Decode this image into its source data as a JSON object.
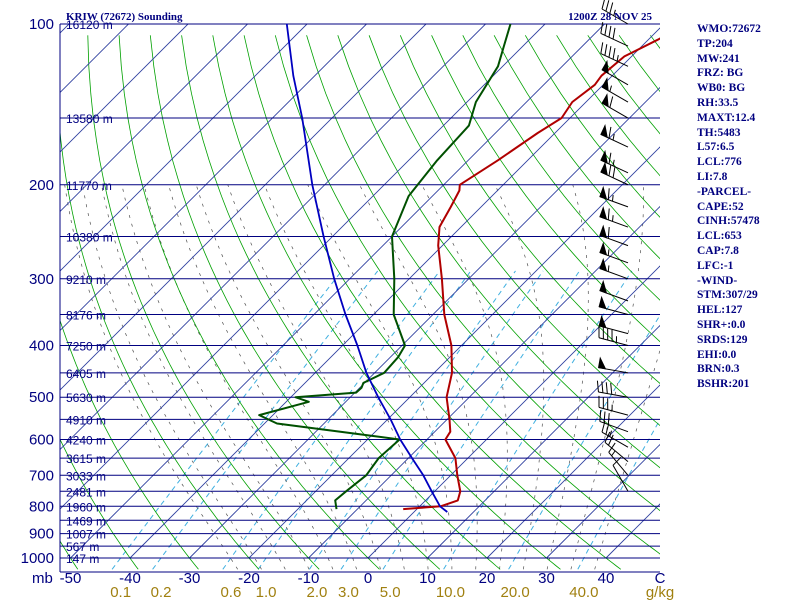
{
  "header": {
    "station": "KRIW (72672) Sounding",
    "time": "1200Z 28 NOV 25"
  },
  "indices": [
    "WMO:72672",
    "TP:204",
    "MW:241",
    "FRZ: BG",
    "WB0: BG",
    "RH:33.5",
    "MAXT:12.4",
    "TH:5483",
    "L57:6.5",
    "LCL:776",
    "LI:7.8",
    "-PARCEL-",
    "CAPE:52",
    "CINH:57478",
    "LCL:653",
    "CAP:7.8",
    "LFC:-1",
    "-WIND-",
    "STM:307/29",
    "HEL:127",
    "SHR+:0.0",
    "SRDS:129",
    "EHI:0.0",
    "BRN:0.3",
    "BSHR:201"
  ],
  "colors": {
    "isobar": "#000080",
    "isotherm": "#3040a0",
    "dry_adiabat": "#00a000",
    "mixing_ratio": "#40b0e0",
    "moist_adiabat": "#505050",
    "temperature": "#b00000",
    "dewpoint": "#005000",
    "parcel": "#0000c0",
    "barb": "#000000"
  },
  "chart_data": {
    "type": "line",
    "title": "KRIW (72672) Sounding",
    "subtitle": "1200Z 28 NOV 25",
    "xlabel": "",
    "ylabel": "mb",
    "x_unit_label": "C",
    "mixing_unit_label": "g/kg",
    "grid": true,
    "y_scale": "log-pressure",
    "pressure_levels": [
      100,
      200,
      300,
      400,
      500,
      600,
      700,
      800,
      900,
      1000
    ],
    "pressure_ticks": [
      "100",
      "200",
      "300",
      "400",
      "500",
      "600",
      "700",
      "800",
      "900",
      "1000"
    ],
    "temperature_ticks": [
      "-50",
      "-40",
      "-30",
      "-20",
      "-10",
      "0",
      "10",
      "20",
      "30",
      "40"
    ],
    "mixing_ratio_ticks": [
      "0.1",
      "0.2",
      "0.6",
      "1.0",
      "2.0",
      "3.0",
      "5.0",
      "10.0",
      "20.0",
      "40.0"
    ],
    "height_labels": [
      {
        "p": 100,
        "label": "16120 m"
      },
      {
        "p": 150,
        "label": "13580 m"
      },
      {
        "p": 200,
        "label": "11770 m"
      },
      {
        "p": 250,
        "label": "10380 m"
      },
      {
        "p": 300,
        "label": "9210 m"
      },
      {
        "p": 350,
        "label": "8176 m"
      },
      {
        "p": 400,
        "label": "7250 m"
      },
      {
        "p": 450,
        "label": "6405 m"
      },
      {
        "p": 500,
        "label": "5630 m"
      },
      {
        "p": 550,
        "label": "4910 m"
      },
      {
        "p": 600,
        "label": "4240 m"
      },
      {
        "p": 650,
        "label": "3615 m"
      },
      {
        "p": 700,
        "label": "3033 m"
      },
      {
        "p": 750,
        "label": "2481 m"
      },
      {
        "p": 800,
        "label": "1960 m"
      },
      {
        "p": 850,
        "label": "1469 m"
      },
      {
        "p": 900,
        "label": "1007 m"
      },
      {
        "p": 950,
        "label": "567 m"
      },
      {
        "p": 1000,
        "label": "147 m"
      }
    ],
    "series": [
      {
        "key": "temperature",
        "points": [
          [
            810,
            -2.3
          ],
          [
            800,
            3.5
          ],
          [
            780,
            5.4
          ],
          [
            750,
            4.3
          ],
          [
            700,
            1.1
          ],
          [
            650,
            -2.1
          ],
          [
            600,
            -6.9
          ],
          [
            580,
            -7.4
          ],
          [
            550,
            -9.6
          ],
          [
            500,
            -13.8
          ],
          [
            450,
            -17.0
          ],
          [
            400,
            -21.7
          ],
          [
            350,
            -28.1
          ],
          [
            300,
            -34.5
          ],
          [
            260,
            -40.7
          ],
          [
            240,
            -43.6
          ],
          [
            220,
            -45.1
          ],
          [
            205,
            -46.4
          ],
          [
            200,
            -47.3
          ],
          [
            180,
            -45.0
          ],
          [
            160,
            -42.9
          ],
          [
            150,
            -41.4
          ],
          [
            140,
            -42.3
          ],
          [
            130,
            -41.4
          ],
          [
            125,
            -41.8
          ],
          [
            115,
            -41.2
          ],
          [
            107,
            -38.4
          ],
          [
            100,
            -36.2
          ]
        ]
      },
      {
        "key": "dewpoint",
        "points": [
          [
            810,
            -13.5
          ],
          [
            780,
            -15.2
          ],
          [
            750,
            -14.9
          ],
          [
            700,
            -14.2
          ],
          [
            650,
            -15.0
          ],
          [
            600,
            -14.6
          ],
          [
            590,
            -20.2
          ],
          [
            560,
            -37.9
          ],
          [
            540,
            -42.3
          ],
          [
            510,
            -36.2
          ],
          [
            500,
            -39.2
          ],
          [
            490,
            -29.8
          ],
          [
            480,
            -29.7
          ],
          [
            470,
            -30.2
          ],
          [
            450,
            -28.4
          ],
          [
            420,
            -28.7
          ],
          [
            400,
            -29.5
          ],
          [
            350,
            -36.6
          ],
          [
            300,
            -42.5
          ],
          [
            250,
            -50.0
          ],
          [
            210,
            -54.0
          ],
          [
            180,
            -55.2
          ],
          [
            155,
            -55.7
          ],
          [
            140,
            -58.5
          ],
          [
            120,
            -60.8
          ],
          [
            110,
            -63.2
          ],
          [
            100,
            -65.8
          ]
        ]
      },
      {
        "key": "parcel",
        "points": [
          [
            820,
            5.6
          ],
          [
            800,
            3.4
          ],
          [
            750,
            -0.5
          ],
          [
            700,
            -4.6
          ],
          [
            650,
            -9.4
          ],
          [
            600,
            -14.5
          ],
          [
            550,
            -19.5
          ],
          [
            500,
            -25.3
          ],
          [
            450,
            -31.4
          ],
          [
            400,
            -37.5
          ],
          [
            350,
            -44.7
          ],
          [
            300,
            -52.6
          ],
          [
            250,
            -61.5
          ],
          [
            200,
            -72.1
          ],
          [
            150,
            -85.0
          ],
          [
            125,
            -93.6
          ],
          [
            100,
            -103.4
          ]
        ]
      }
    ],
    "wind_barbs": [
      {
        "p": 100,
        "dir": 300,
        "kt": 35
      },
      {
        "p": 110,
        "dir": 295,
        "kt": 40
      },
      {
        "p": 120,
        "dir": 295,
        "kt": 45
      },
      {
        "p": 130,
        "dir": 300,
        "kt": 50
      },
      {
        "p": 140,
        "dir": 300,
        "kt": 55
      },
      {
        "p": 150,
        "dir": 300,
        "kt": 60
      },
      {
        "p": 170,
        "dir": 295,
        "kt": 65
      },
      {
        "p": 190,
        "dir": 295,
        "kt": 65
      },
      {
        "p": 200,
        "dir": 295,
        "kt": 70
      },
      {
        "p": 220,
        "dir": 290,
        "kt": 65
      },
      {
        "p": 240,
        "dir": 290,
        "kt": 65
      },
      {
        "p": 260,
        "dir": 290,
        "kt": 60
      },
      {
        "p": 280,
        "dir": 290,
        "kt": 55
      },
      {
        "p": 300,
        "dir": 290,
        "kt": 55
      },
      {
        "p": 330,
        "dir": 290,
        "kt": 50
      },
      {
        "p": 350,
        "dir": 285,
        "kt": 50
      },
      {
        "p": 380,
        "dir": 285,
        "kt": 50
      },
      {
        "p": 400,
        "dir": 285,
        "kt": 45
      },
      {
        "p": 450,
        "dir": 280,
        "kt": 50
      },
      {
        "p": 500,
        "dir": 280,
        "kt": 40
      },
      {
        "p": 540,
        "dir": 285,
        "kt": 35
      },
      {
        "p": 580,
        "dir": 290,
        "kt": 30
      },
      {
        "p": 620,
        "dir": 300,
        "kt": 25
      },
      {
        "p": 660,
        "dir": 310,
        "kt": 20
      },
      {
        "p": 700,
        "dir": 320,
        "kt": 15
      },
      {
        "p": 750,
        "dir": 330,
        "kt": 10
      }
    ]
  }
}
